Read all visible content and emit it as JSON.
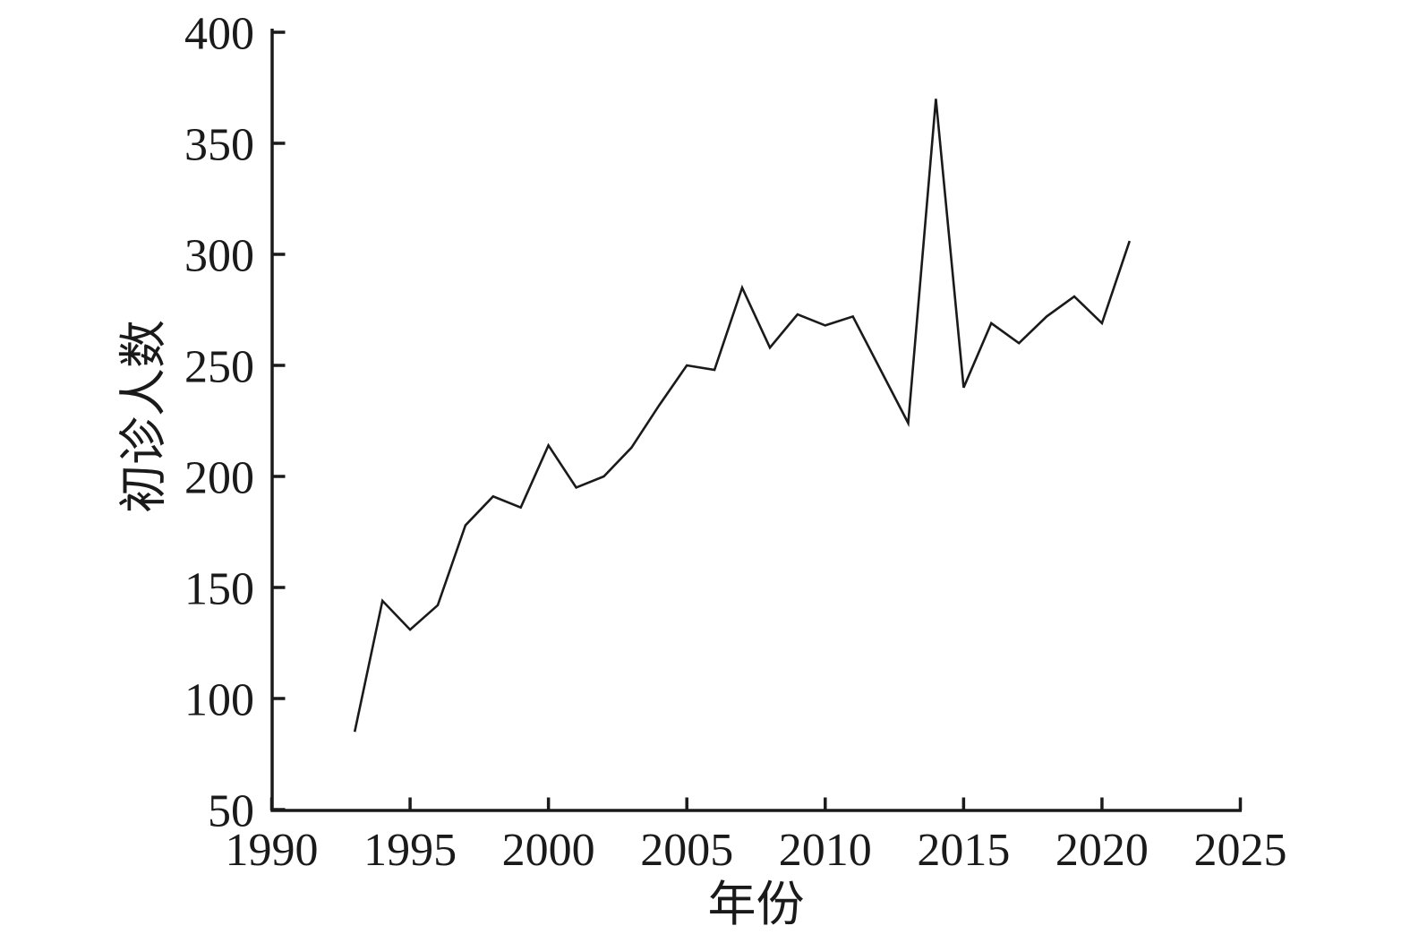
{
  "figure": {
    "background_color": "#ffffff",
    "line_color": "#1a1a1a",
    "axis_color": "#1a1a1a",
    "text_color": "#1a1a1a"
  },
  "chart_data": {
    "type": "line",
    "title": "",
    "xlabel": "年份",
    "ylabel": "初诊人数",
    "x": [
      1993,
      1994,
      1995,
      1996,
      1997,
      1998,
      1999,
      2000,
      2001,
      2002,
      2003,
      2004,
      2005,
      2006,
      2007,
      2008,
      2009,
      2010,
      2011,
      2012,
      2013,
      2014,
      2015,
      2016,
      2017,
      2018,
      2019,
      2020,
      2021
    ],
    "series": [
      {
        "name": "初诊人数",
        "values": [
          85,
          144,
          131,
          142,
          178,
          191,
          186,
          214,
          195,
          200,
          213,
          232,
          250,
          248,
          285,
          258,
          273,
          268,
          272,
          248,
          224,
          370,
          240,
          269,
          260,
          272,
          281,
          269,
          306
        ]
      }
    ],
    "xlim": [
      1990,
      2025
    ],
    "ylim": [
      50,
      400
    ],
    "x_ticks": [
      1990,
      1995,
      2000,
      2005,
      2010,
      2015,
      2020,
      2025
    ],
    "y_ticks": [
      50,
      100,
      150,
      200,
      250,
      300,
      350,
      400
    ],
    "grid": false,
    "legend_position": "none"
  }
}
